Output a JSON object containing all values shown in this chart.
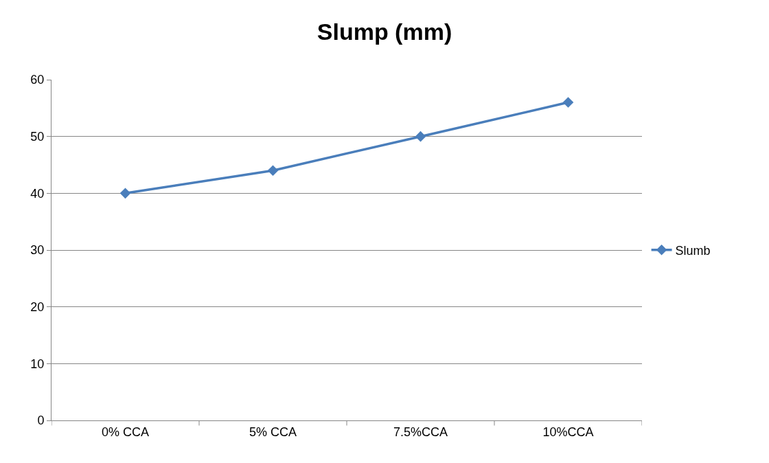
{
  "chart_data": {
    "type": "line",
    "title": "Slump (mm)",
    "categories": [
      "0% CCA",
      "5% CCA",
      "7.5%CCA",
      "10%CCA"
    ],
    "series": [
      {
        "name": "Slumb",
        "color": "#4a7ebb",
        "values": [
          40,
          44,
          50,
          56
        ]
      }
    ],
    "ylim": [
      0,
      60
    ],
    "yticks": [
      0,
      10,
      20,
      30,
      40,
      50,
      60
    ],
    "grid": "y",
    "legend": "right",
    "marker": "diamond",
    "line_style": "solid"
  }
}
